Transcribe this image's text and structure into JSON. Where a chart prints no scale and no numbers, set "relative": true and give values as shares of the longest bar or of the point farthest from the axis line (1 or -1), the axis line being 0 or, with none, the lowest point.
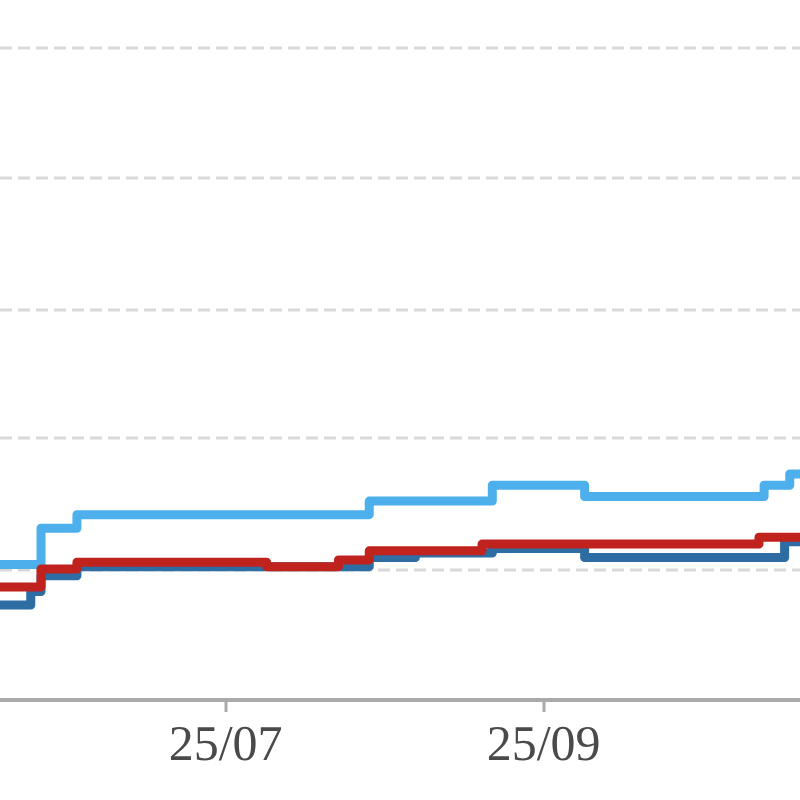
{
  "chart_data": {
    "type": "step",
    "relative": true,
    "xlim": [
      "--06-11",
      "--11-14"
    ],
    "xticks": [
      {
        "value": "--07-25",
        "label": "25/07"
      },
      {
        "value": "--09-25",
        "label": "25/09"
      }
    ],
    "ref_lines": [
      {
        "axis": "y",
        "value": 0.58,
        "color": "#d9d9d9",
        "line_style": "dashed"
      },
      {
        "axis": "y",
        "value": 1.16,
        "color": "#d9d9d9",
        "line_style": "dashed"
      },
      {
        "axis": "y",
        "value": 1.73,
        "color": "#d9d9d9",
        "line_style": "dashed"
      },
      {
        "axis": "y",
        "value": 2.31,
        "color": "#d9d9d9",
        "line_style": "dashed"
      },
      {
        "axis": "y",
        "value": 2.89,
        "color": "#d9d9d9",
        "line_style": "dashed"
      }
    ],
    "series": [
      {
        "color": "#2e6ca4",
        "x": [
          "--06-11",
          "--06-17",
          "--06-19",
          "--06-26",
          "--08-22",
          "--08-31",
          "--09-15",
          "--10-03",
          "--11-11",
          "--11-14"
        ],
        "values": [
          0.42,
          0.48,
          0.55,
          0.59,
          0.63,
          0.65,
          0.67,
          0.63,
          0.7,
          0.7
        ]
      },
      {
        "color": "#4db0ec",
        "x": [
          "--06-11",
          "--06-19",
          "--06-26",
          "--08-22",
          "--09-15",
          "--10-03",
          "--11-07",
          "--11-12",
          "--11-14"
        ],
        "values": [
          0.6,
          0.76,
          0.82,
          0.88,
          0.95,
          0.9,
          0.95,
          1,
          1
        ]
      },
      {
        "color": "#c0221e",
        "x": [
          "--06-11",
          "--06-19",
          "--06-26",
          "--08-02",
          "--08-16",
          "--08-22",
          "--09-13",
          "--11-06",
          "--11-14"
        ],
        "values": [
          0.5,
          0.58,
          0.61,
          0.59,
          0.62,
          0.66,
          0.69,
          0.72,
          0.72
        ]
      }
    ]
  }
}
